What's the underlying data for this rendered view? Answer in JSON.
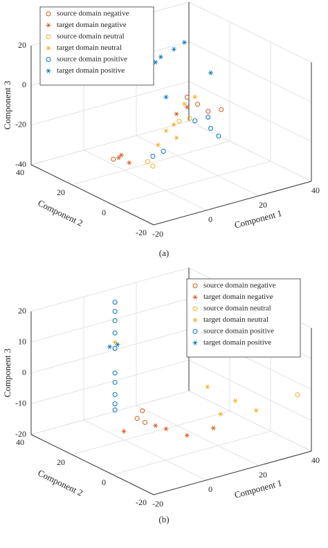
{
  "chart_data": [
    {
      "type": "scatter3d",
      "caption": "(a)",
      "xlabel": "Component 1",
      "ylabel": "Component 2",
      "zlabel": "Component 3",
      "xlim": [
        -20,
        40
      ],
      "xticks": [
        -20,
        0,
        20,
        40
      ],
      "ylim": [
        -20,
        40
      ],
      "yticks": [
        -20,
        0,
        20,
        40
      ],
      "zlim": [
        -40,
        20
      ],
      "zticks": [
        -40,
        -20,
        0,
        20
      ],
      "grid": true,
      "legend": "upper left",
      "series": [
        {
          "name": "source domain negative",
          "color": "#d95319",
          "marker": "o",
          "x": [
            16,
            20,
            24,
            29,
            -12
          ],
          "y": [
            10,
            10,
            10,
            10,
            10
          ],
          "z": [
            -4,
            -9,
            -14,
            -15,
            -25
          ]
        },
        {
          "name": "target domain negative",
          "color": "#d95319",
          "marker": "*",
          "x": [
            -9,
            -6,
            -10,
            16,
            12
          ],
          "y": [
            10,
            10,
            10,
            10,
            10
          ],
          "z": [
            -24,
            -29,
            -25,
            -9,
            -11
          ]
        },
        {
          "name": "source domain neutral",
          "color": "#edb120",
          "marker": "o",
          "x": [
            1,
            3,
            13,
            17
          ],
          "y": [
            10,
            10,
            10,
            10
          ],
          "z": [
            -31,
            -34,
            -15,
            -15
          ]
        },
        {
          "name": "target domain neutral",
          "color": "#edb120",
          "marker": "*",
          "x": [
            8,
            11,
            15,
            12,
            5,
            19
          ],
          "y": [
            10,
            10,
            10,
            10,
            10,
            10
          ],
          "z": [
            -18,
            -16,
            -7,
            -23,
            -24,
            -5
          ]
        },
        {
          "name": "source domain positive",
          "color": "#0072bd",
          "marker": "o",
          "x": [
            3,
            7,
            24,
            25,
            28,
            19
          ],
          "y": [
            10,
            10,
            10,
            10,
            10,
            10
          ],
          "z": [
            -29,
            -28,
            -17,
            -23,
            -28,
            -17
          ]
        },
        {
          "name": "target domain positive",
          "color": "#0072bd",
          "marker": "*",
          "x": [
            1,
            6,
            11,
            15,
            4,
            25,
            8
          ],
          "y": [
            10,
            10,
            10,
            10,
            10,
            10,
            10
          ],
          "z": [
            17,
            20,
            22,
            24,
            18,
            5,
            -1
          ]
        }
      ]
    },
    {
      "type": "scatter3d",
      "caption": "(b)",
      "xlabel": "Component 1",
      "ylabel": "Component 2",
      "zlabel": "Component 3",
      "xlim": [
        -20,
        40
      ],
      "xticks": [
        -20,
        0,
        20,
        40
      ],
      "ylim": [
        -20,
        40
      ],
      "yticks": [
        -20,
        0,
        20,
        40
      ],
      "zlim": [
        -20,
        20
      ],
      "zticks": [
        -20,
        -10,
        0,
        10,
        20
      ],
      "grid": true,
      "legend": "upper right",
      "series": [
        {
          "name": "source domain negative",
          "color": "#d95319",
          "marker": "o",
          "x": [
            -1,
            0,
            -3
          ],
          "y": [
            10,
            10,
            10
          ],
          "z": [
            -7,
            -11,
            -9
          ]
        },
        {
          "name": "target domain negative",
          "color": "#d95319",
          "marker": "*",
          "x": [
            -8,
            8,
            16,
            26,
            4
          ],
          "y": [
            10,
            10,
            10,
            10,
            10
          ],
          "z": [
            -12,
            -15,
            -19,
            -19,
            -13
          ]
        },
        {
          "name": "source domain neutral",
          "color": "#edb120",
          "marker": "o",
          "x": [
            8,
            38.6
          ],
          "y": [
            35,
            -15
          ],
          "z": [
            3,
            -3
          ]
        },
        {
          "name": "target domain neutral",
          "color": "#edb120",
          "marker": "*",
          "x": [
            8,
            34.5,
            26.6,
            16,
            21
          ],
          "y": [
            35,
            0,
            0,
            0,
            0
          ],
          "z": [
            5,
            -12,
            -7,
            0,
            -10
          ]
        },
        {
          "name": "source domain positive",
          "color": "#0072bd",
          "marker": "o",
          "x": [
            8,
            8,
            8,
            8,
            8,
            8,
            8,
            8,
            8,
            8
          ],
          "y": [
            35,
            35,
            35,
            35,
            35,
            35,
            35,
            35,
            35,
            35
          ],
          "z": [
            18,
            15,
            12,
            8,
            3,
            -5,
            -8,
            -12,
            -15,
            -17
          ]
        },
        {
          "name": "target domain positive",
          "color": "#0072bd",
          "marker": "*",
          "x": [
            6,
            9
          ],
          "y": [
            35,
            35
          ],
          "z": [
            4,
            4
          ]
        }
      ]
    }
  ]
}
